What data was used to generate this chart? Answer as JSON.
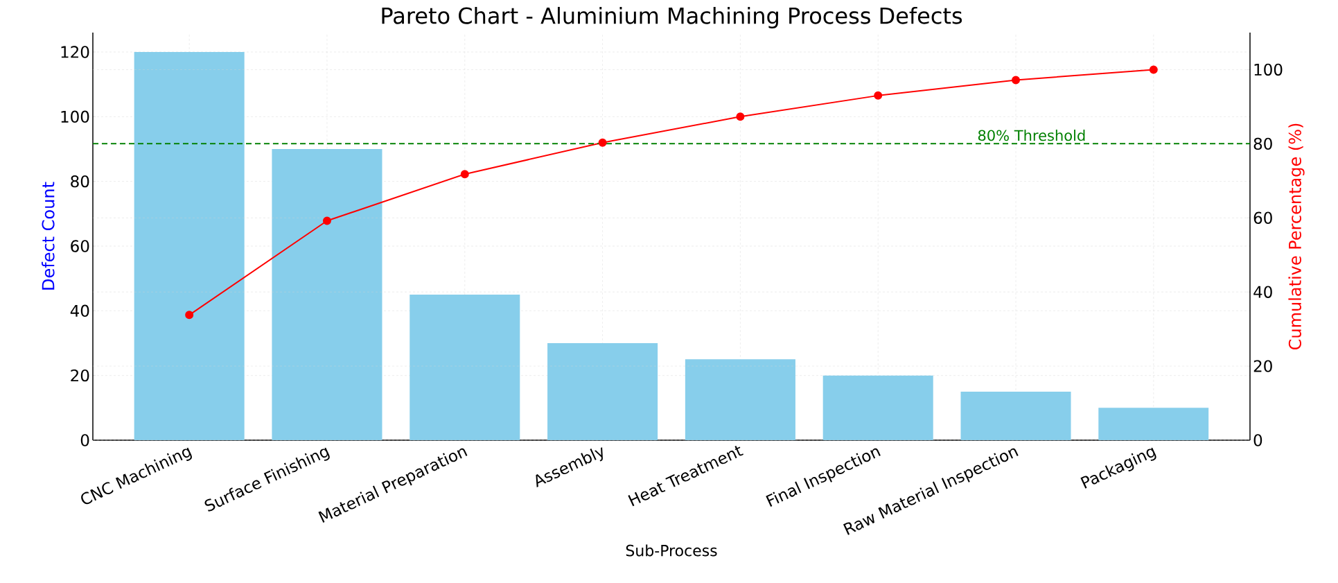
{
  "chart_data": {
    "type": "bar",
    "title": "Pareto Chart - Aluminium Machining Process Defects",
    "xlabel": "Sub-Process",
    "ylabel": "Defect Count",
    "y2label": "Cumulative Percentage (%)",
    "categories": [
      "CNC Machining",
      "Surface Finishing",
      "Material Preparation",
      "Assembly",
      "Heat Treatment",
      "Final Inspection",
      "Raw Material Inspection",
      "Packaging"
    ],
    "series": [
      {
        "color": "#87ceeb",
        "values": [
          120,
          90,
          45,
          30,
          25,
          20,
          15,
          10
        ]
      },
      {
        "type": "line",
        "axis": "y2",
        "color": "#ff0000",
        "values": [
          33.8,
          59.2,
          71.8,
          80.3,
          87.3,
          93.0,
          97.2,
          100
        ]
      }
    ],
    "ylim": [
      0,
      126
    ],
    "yticks": [
      0,
      20,
      40,
      60,
      80,
      100,
      120
    ],
    "y2lim": [
      0,
      110
    ],
    "y2ticks": [
      0,
      20,
      40,
      60,
      80,
      100
    ],
    "ref_lines": [
      {
        "axis": "y2",
        "value": 80,
        "label": "80% Threshold",
        "color": "#008000",
        "line_style": "dashed"
      }
    ],
    "grid": true,
    "marker": "circle",
    "line_style": "solid"
  }
}
